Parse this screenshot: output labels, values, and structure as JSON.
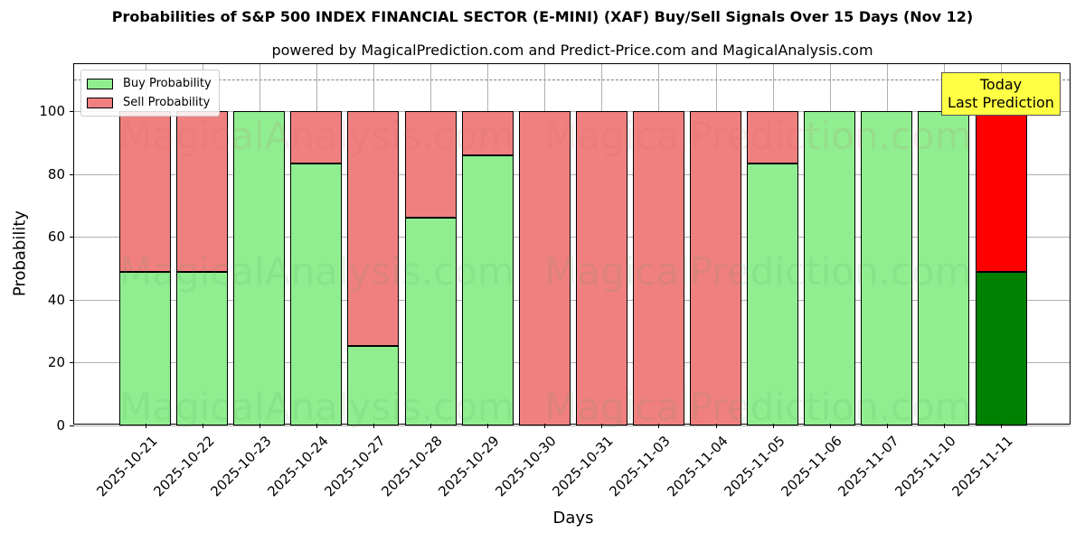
{
  "chart_data": {
    "type": "bar",
    "stacked": true,
    "title": "Probabilities of S&P 500 INDEX FINANCIAL SECTOR (E-MINI) (XAF) Buy/Sell Signals Over 15 Days (Nov 12)",
    "subtitle": "powered by MagicalPrediction.com and Predict-Price.com and MagicalAnalysis.com",
    "xlabel": "Days",
    "ylabel": "Probability",
    "ylim": [
      0,
      115
    ],
    "yticks": [
      0,
      20,
      40,
      60,
      80,
      100
    ],
    "grid": true,
    "reference_line": 110,
    "legend_position": "upper left",
    "categories": [
      "2025-10-21",
      "2025-10-22",
      "2025-10-23",
      "2025-10-24",
      "2025-10-27",
      "2025-10-28",
      "2025-10-29",
      "2025-10-30",
      "2025-10-31",
      "2025-11-03",
      "2025-11-04",
      "2025-11-05",
      "2025-11-06",
      "2025-11-07",
      "2025-11-10",
      "2025-11-11"
    ],
    "series": [
      {
        "name": "Buy Probability",
        "color": "#90ee90",
        "values": [
          49,
          49,
          100,
          83.5,
          25.4,
          66.2,
          86.1,
          0,
          0,
          0,
          0,
          83.5,
          100,
          100,
          100,
          49
        ]
      },
      {
        "name": "Sell Probability",
        "color": "#f08080",
        "values": [
          51,
          51,
          0,
          16.5,
          74.6,
          33.8,
          13.9,
          100,
          100,
          100,
          100,
          16.5,
          0,
          0,
          0,
          51
        ]
      }
    ],
    "highlight": {
      "index": 15,
      "buy_color": "#008000",
      "sell_color": "#ff0000",
      "annotation": "Today\nLast Prediction"
    }
  },
  "labels": {
    "title": "Probabilities of S&P 500 INDEX FINANCIAL SECTOR (E-MINI) (XAF) Buy/Sell Signals Over 15 Days (Nov 12)",
    "subtitle": "powered by MagicalPrediction.com and Predict-Price.com and MagicalAnalysis.com",
    "xlabel": "Days",
    "ylabel": "Probability",
    "legend_buy": "Buy Probability",
    "legend_sell": "Sell Probability",
    "today_line1": "Today",
    "today_line2": "Last Prediction",
    "watermark_1": "MagicalAnalysis.com",
    "watermark_2": "MagicalPrediction.com"
  },
  "colors": {
    "buy": "#90ee90",
    "sell": "#f08080",
    "today_buy": "#008000",
    "today_sell": "#ff0000",
    "annotation_bg": "#ffff44"
  }
}
